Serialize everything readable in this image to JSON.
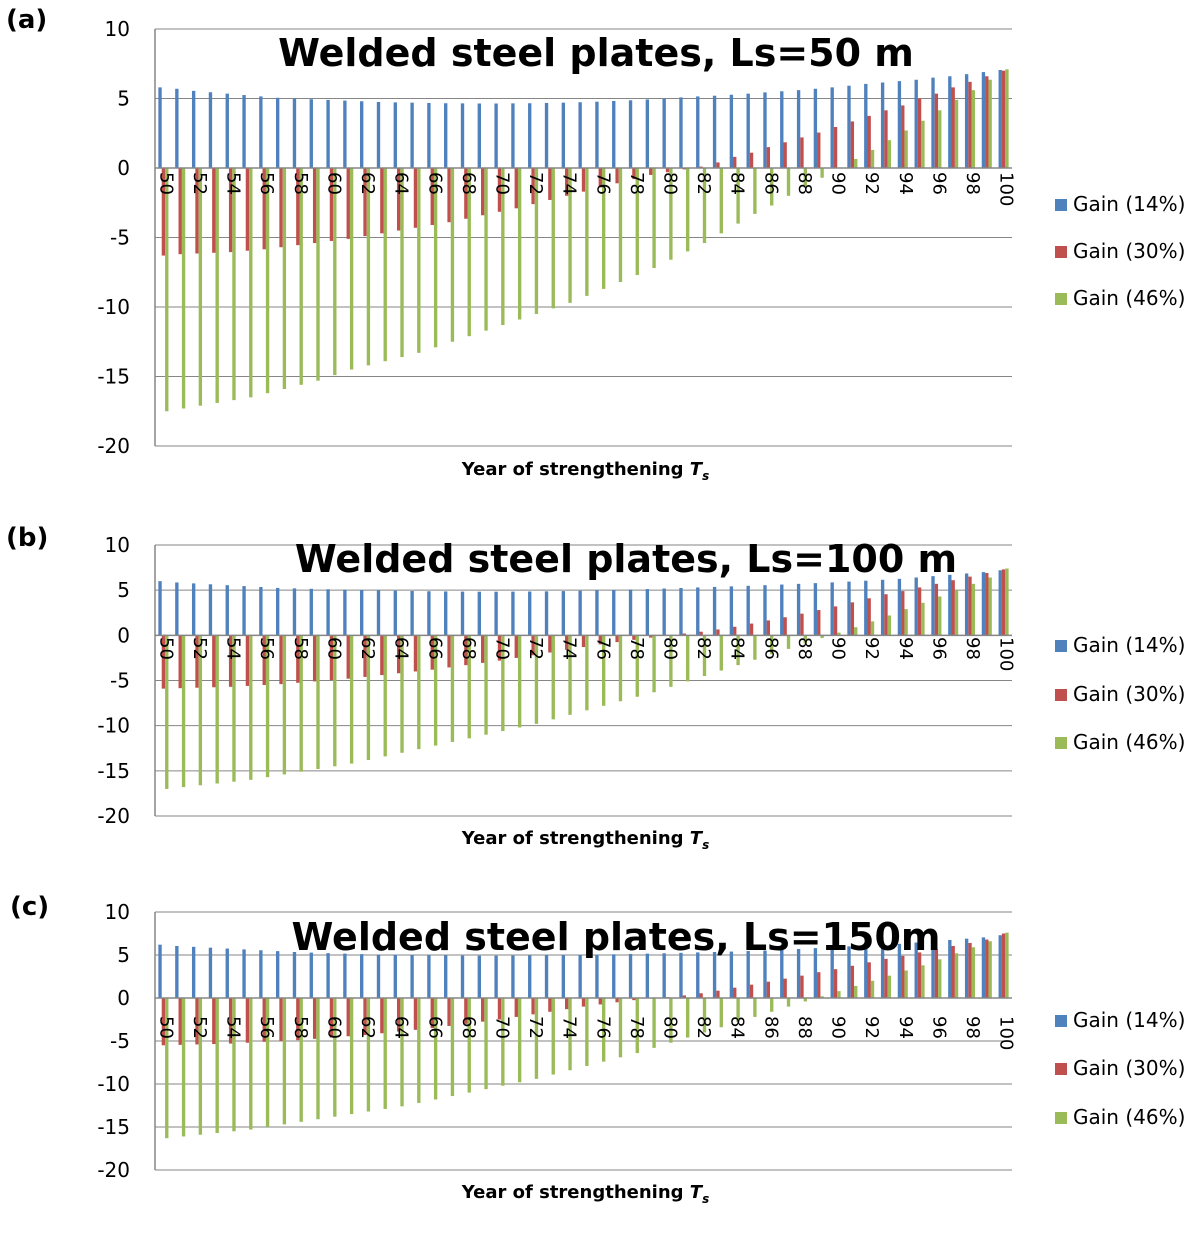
{
  "chart_data": [
    {
      "type": "bar",
      "panel": "(a)",
      "title": "Welded steel plates, Ls=50 m",
      "xlabel": "Year of strengthening T",
      "xlabel_sub": "s",
      "ylim": [
        -20,
        10
      ],
      "yticks": [
        10,
        5,
        0,
        -5,
        -10,
        -15,
        -20
      ],
      "grid": true,
      "legend_position": "right",
      "x": [
        50,
        51,
        52,
        53,
        54,
        55,
        56,
        57,
        58,
        59,
        60,
        61,
        62,
        63,
        64,
        65,
        66,
        67,
        68,
        69,
        70,
        71,
        72,
        73,
        74,
        75,
        76,
        77,
        78,
        79,
        80,
        81,
        82,
        83,
        84,
        85,
        86,
        87,
        88,
        89,
        90,
        91,
        92,
        93,
        94,
        95,
        96,
        97,
        98,
        99,
        100
      ],
      "x_tick_labels": [
        "50",
        "",
        "52",
        "",
        "54",
        "",
        "56",
        "",
        "58",
        "",
        "60",
        "",
        "62",
        "",
        "64",
        "",
        "66",
        "",
        "68",
        "",
        "70",
        "",
        "72",
        "",
        "74",
        "",
        "76",
        "",
        "78",
        "",
        "80",
        "",
        "82",
        "",
        "84",
        "",
        "86",
        "",
        "88",
        "",
        "90",
        "",
        "92",
        "",
        "94",
        "",
        "96",
        "",
        "98",
        "",
        "100"
      ],
      "series": [
        {
          "name": "Gain (14%)",
          "color": "#4f81bd",
          "values": [
            5.8,
            5.7,
            5.55,
            5.45,
            5.35,
            5.25,
            5.15,
            5.05,
            5.0,
            4.95,
            4.9,
            4.85,
            4.8,
            4.75,
            4.72,
            4.7,
            4.68,
            4.66,
            4.65,
            4.64,
            4.64,
            4.65,
            4.66,
            4.68,
            4.7,
            4.73,
            4.77,
            4.82,
            4.87,
            4.93,
            5.0,
            5.08,
            5.15,
            5.2,
            5.27,
            5.35,
            5.44,
            5.52,
            5.6,
            5.7,
            5.8,
            5.92,
            6.05,
            6.15,
            6.25,
            6.35,
            6.5,
            6.6,
            6.75,
            6.9,
            7.05
          ]
        },
        {
          "name": "Gain (30%)",
          "color": "#c0504d",
          "values": [
            -6.3,
            -6.2,
            -6.15,
            -6.1,
            -6.05,
            -5.95,
            -5.85,
            -5.7,
            -5.55,
            -5.4,
            -5.25,
            -5.1,
            -4.9,
            -4.7,
            -4.5,
            -4.3,
            -4.1,
            -3.9,
            -3.65,
            -3.4,
            -3.15,
            -2.9,
            -2.6,
            -2.3,
            -2.0,
            -1.7,
            -1.4,
            -1.1,
            -0.8,
            -0.5,
            -0.3,
            -0.1,
            0.1,
            0.4,
            0.8,
            1.1,
            1.5,
            1.85,
            2.2,
            2.55,
            2.95,
            3.35,
            3.75,
            4.15,
            4.5,
            5.0,
            5.35,
            5.8,
            6.2,
            6.6,
            7.0
          ]
        },
        {
          "name": "Gain (46%)",
          "color": "#9bbb59",
          "values": [
            -17.5,
            -17.3,
            -17.1,
            -16.9,
            -16.7,
            -16.5,
            -16.2,
            -15.9,
            -15.6,
            -15.3,
            -14.9,
            -14.5,
            -14.2,
            -13.9,
            -13.6,
            -13.3,
            -12.9,
            -12.5,
            -12.1,
            -11.7,
            -11.3,
            -10.9,
            -10.5,
            -10.1,
            -9.7,
            -9.2,
            -8.7,
            -8.2,
            -7.7,
            -7.2,
            -6.6,
            -6.0,
            -5.4,
            -4.7,
            -4.0,
            -3.3,
            -2.7,
            -2.0,
            -1.4,
            -0.7,
            0.0,
            0.65,
            1.3,
            2.0,
            2.7,
            3.4,
            4.15,
            4.9,
            5.6,
            6.35,
            7.1
          ]
        }
      ]
    },
    {
      "type": "bar",
      "panel": "(b)",
      "title": "Welded steel plates, Ls=100 m",
      "xlabel": "Year of strengthening T",
      "xlabel_sub": "s",
      "ylim": [
        -20,
        10
      ],
      "yticks": [
        10,
        5,
        0,
        -5,
        -10,
        -15,
        -20
      ],
      "grid": true,
      "legend_position": "right",
      "x": [
        50,
        51,
        52,
        53,
        54,
        55,
        56,
        57,
        58,
        59,
        60,
        61,
        62,
        63,
        64,
        65,
        66,
        67,
        68,
        69,
        70,
        71,
        72,
        73,
        74,
        75,
        76,
        77,
        78,
        79,
        80,
        81,
        82,
        83,
        84,
        85,
        86,
        87,
        88,
        89,
        90,
        91,
        92,
        93,
        94,
        95,
        96,
        97,
        98,
        99,
        100
      ],
      "x_tick_labels": [
        "50",
        "",
        "52",
        "",
        "54",
        "",
        "56",
        "",
        "58",
        "",
        "60",
        "",
        "62",
        "",
        "64",
        "",
        "66",
        "",
        "68",
        "",
        "70",
        "",
        "72",
        "",
        "74",
        "",
        "76",
        "",
        "78",
        "",
        "80",
        "",
        "82",
        "",
        "84",
        "",
        "86",
        "",
        "88",
        "",
        "90",
        "",
        "92",
        "",
        "94",
        "",
        "96",
        "",
        "98",
        "",
        "100"
      ],
      "series": [
        {
          "name": "Gain (14%)",
          "color": "#4f81bd",
          "values": [
            6.0,
            5.85,
            5.75,
            5.65,
            5.55,
            5.45,
            5.35,
            5.25,
            5.2,
            5.15,
            5.1,
            5.05,
            5.0,
            4.97,
            4.94,
            4.91,
            4.88,
            4.86,
            4.84,
            4.83,
            4.83,
            4.84,
            4.85,
            4.87,
            4.9,
            4.94,
            4.98,
            5.02,
            5.07,
            5.12,
            5.18,
            5.24,
            5.3,
            5.36,
            5.42,
            5.48,
            5.55,
            5.62,
            5.7,
            5.78,
            5.86,
            5.95,
            6.05,
            6.15,
            6.25,
            6.4,
            6.55,
            6.7,
            6.85,
            7.0,
            7.2
          ]
        },
        {
          "name": "Gain (30%)",
          "color": "#c0504d",
          "values": [
            -5.9,
            -5.85,
            -5.8,
            -5.75,
            -5.7,
            -5.6,
            -5.5,
            -5.4,
            -5.25,
            -5.1,
            -4.95,
            -4.8,
            -4.6,
            -4.4,
            -4.2,
            -4.0,
            -3.8,
            -3.55,
            -3.3,
            -3.05,
            -2.8,
            -2.5,
            -2.2,
            -1.9,
            -1.6,
            -1.3,
            -1.0,
            -0.75,
            -0.5,
            -0.25,
            0.0,
            0.2,
            0.4,
            0.65,
            0.95,
            1.3,
            1.65,
            2.0,
            2.4,
            2.8,
            3.2,
            3.65,
            4.1,
            4.55,
            4.9,
            5.3,
            5.7,
            6.1,
            6.5,
            6.9,
            7.3
          ]
        },
        {
          "name": "Gain (46%)",
          "color": "#9bbb59",
          "values": [
            -17.0,
            -16.8,
            -16.6,
            -16.4,
            -16.2,
            -16.0,
            -15.7,
            -15.4,
            -15.1,
            -14.8,
            -14.5,
            -14.2,
            -13.8,
            -13.4,
            -13.0,
            -12.6,
            -12.2,
            -11.8,
            -11.4,
            -11.0,
            -10.6,
            -10.2,
            -9.8,
            -9.3,
            -8.8,
            -8.3,
            -7.8,
            -7.3,
            -6.8,
            -6.3,
            -5.7,
            -5.1,
            -4.5,
            -3.9,
            -3.3,
            -2.7,
            -2.1,
            -1.5,
            -0.9,
            -0.3,
            0.3,
            0.9,
            1.55,
            2.2,
            2.9,
            3.6,
            4.3,
            5.0,
            5.7,
            6.4,
            7.4
          ]
        }
      ]
    },
    {
      "type": "bar",
      "panel": "(c)",
      "title": "Welded steel plates, Ls=150m",
      "xlabel": "Year of strengthening T",
      "xlabel_sub": "s",
      "ylim": [
        -20,
        10
      ],
      "yticks": [
        10,
        5,
        0,
        -5,
        -10,
        -15,
        -20
      ],
      "grid": true,
      "legend_position": "right",
      "x": [
        50,
        51,
        52,
        53,
        54,
        55,
        56,
        57,
        58,
        59,
        60,
        61,
        62,
        63,
        64,
        65,
        66,
        67,
        68,
        69,
        70,
        71,
        72,
        73,
        74,
        75,
        76,
        77,
        78,
        79,
        80,
        81,
        82,
        83,
        84,
        85,
        86,
        87,
        88,
        89,
        90,
        91,
        92,
        93,
        94,
        95,
        96,
        97,
        98,
        99,
        100
      ],
      "x_tick_labels": [
        "50",
        "",
        "52",
        "",
        "54",
        "",
        "56",
        "",
        "58",
        "",
        "60",
        "",
        "62",
        "",
        "64",
        "",
        "66",
        "",
        "68",
        "",
        "70",
        "",
        "72",
        "",
        "74",
        "",
        "76",
        "",
        "78",
        "",
        "80",
        "",
        "82",
        "",
        "84",
        "",
        "86",
        "",
        "88",
        "",
        "90",
        "",
        "92",
        "",
        "94",
        "",
        "96",
        "",
        "98",
        "",
        "100"
      ],
      "series": [
        {
          "name": "Gain (14%)",
          "color": "#4f81bd",
          "values": [
            6.2,
            6.05,
            5.95,
            5.85,
            5.75,
            5.65,
            5.55,
            5.45,
            5.35,
            5.28,
            5.22,
            5.16,
            5.1,
            5.05,
            5.02,
            4.99,
            4.97,
            4.95,
            4.93,
            4.92,
            4.92,
            4.93,
            4.94,
            4.96,
            4.98,
            5.01,
            5.04,
            5.08,
            5.12,
            5.16,
            5.2,
            5.25,
            5.3,
            5.35,
            5.4,
            5.46,
            5.52,
            5.6,
            5.7,
            5.8,
            5.9,
            6.0,
            6.1,
            6.2,
            6.3,
            6.45,
            6.6,
            6.75,
            6.9,
            7.05,
            7.3
          ]
        },
        {
          "name": "Gain (30%)",
          "color": "#c0504d",
          "values": [
            -5.5,
            -5.45,
            -5.4,
            -5.35,
            -5.3,
            -5.2,
            -5.1,
            -5.0,
            -4.9,
            -4.75,
            -4.6,
            -4.45,
            -4.3,
            -4.1,
            -3.9,
            -3.7,
            -3.5,
            -3.25,
            -3.0,
            -2.75,
            -2.5,
            -2.2,
            -1.9,
            -1.6,
            -1.3,
            -1.0,
            -0.75,
            -0.5,
            -0.25,
            -0.05,
            0.1,
            0.3,
            0.55,
            0.85,
            1.2,
            1.55,
            1.9,
            2.25,
            2.6,
            3.0,
            3.35,
            3.75,
            4.15,
            4.55,
            4.9,
            5.3,
            5.65,
            6.05,
            6.4,
            6.8,
            7.5
          ]
        },
        {
          "name": "Gain (46%)",
          "color": "#9bbb59",
          "values": [
            -16.3,
            -16.1,
            -15.9,
            -15.7,
            -15.5,
            -15.3,
            -15.0,
            -14.7,
            -14.4,
            -14.1,
            -13.8,
            -13.5,
            -13.2,
            -12.9,
            -12.6,
            -12.2,
            -11.8,
            -11.4,
            -11.0,
            -10.6,
            -10.2,
            -9.8,
            -9.4,
            -8.9,
            -8.4,
            -7.9,
            -7.4,
            -6.9,
            -6.4,
            -5.8,
            -5.2,
            -4.6,
            -4.0,
            -3.4,
            -2.8,
            -2.2,
            -1.6,
            -1.0,
            -0.4,
            0.2,
            0.8,
            1.4,
            2.0,
            2.6,
            3.2,
            3.8,
            4.5,
            5.2,
            5.9,
            6.6,
            7.6
          ]
        }
      ]
    }
  ]
}
